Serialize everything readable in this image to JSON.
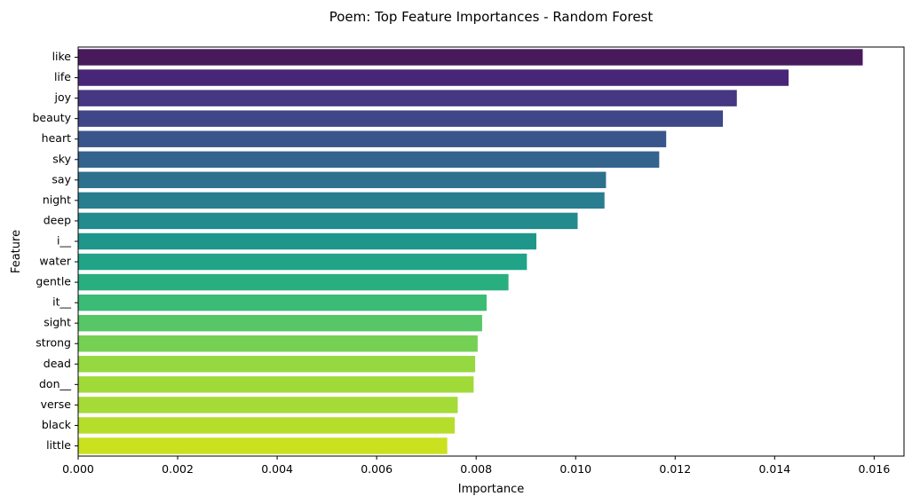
{
  "chart_data": {
    "type": "bar",
    "orientation": "horizontal",
    "title": "Poem: Top Feature Importances - Random Forest",
    "xlabel": "Importance",
    "ylabel": "Feature",
    "xlim": [
      0,
      0.0166
    ],
    "xticks": [
      "0.000",
      "0.002",
      "0.004",
      "0.006",
      "0.008",
      "0.010",
      "0.012",
      "0.014",
      "0.016"
    ],
    "grid": false,
    "categories": [
      "like",
      "life",
      "joy",
      "beauty",
      "heart",
      "sky",
      "say",
      "night",
      "deep",
      "i__",
      "water",
      "gentle",
      "it__",
      "sight",
      "strong",
      "dead",
      "don__",
      "verse",
      "black",
      "little"
    ],
    "values": [
      0.01577,
      0.01428,
      0.01324,
      0.01296,
      0.01182,
      0.01168,
      0.01061,
      0.01058,
      0.01004,
      0.00921,
      0.00902,
      0.00865,
      0.00821,
      0.00812,
      0.00803,
      0.00798,
      0.00795,
      0.00763,
      0.00757,
      0.00742
    ],
    "colors": [
      "#481a5c",
      "#482677",
      "#453781",
      "#3f4788",
      "#39558c",
      "#32648e",
      "#2d718e",
      "#287d8e",
      "#238a8d",
      "#1f968b",
      "#20a386",
      "#29af7f",
      "#3bbb75",
      "#56c667",
      "#75d054",
      "#95d840",
      "#a0da39",
      "#a5db36",
      "#b5de2b",
      "#cae11f"
    ]
  }
}
